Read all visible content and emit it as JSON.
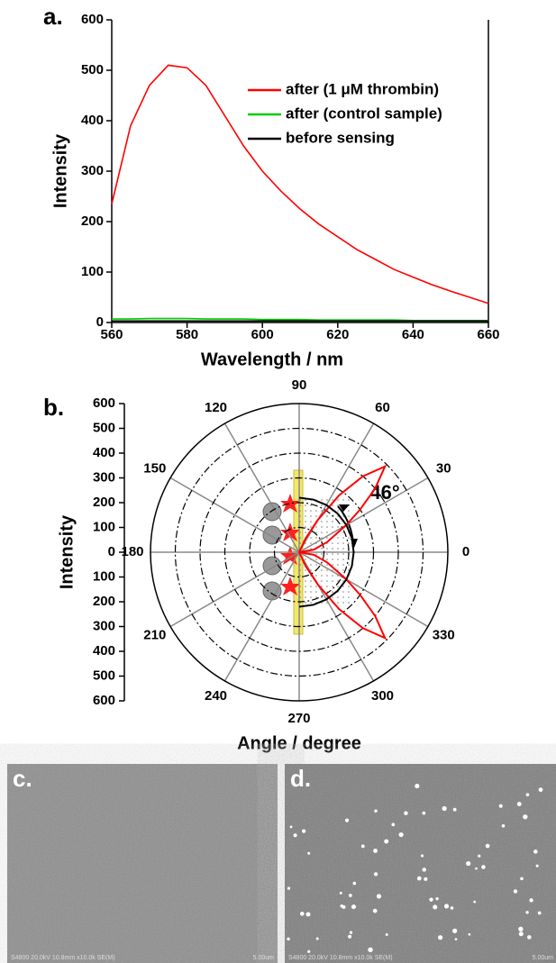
{
  "chart_data": [
    {
      "type": "line",
      "panel": "a.",
      "xlabel": "Wavelength / nm",
      "ylabel": "Intensity",
      "xlim": [
        560,
        660
      ],
      "xticks": [
        560,
        580,
        600,
        620,
        640,
        660
      ],
      "ylim": [
        0,
        600
      ],
      "yticks": [
        0,
        100,
        200,
        300,
        400,
        500,
        600
      ],
      "x": [
        560,
        565,
        570,
        575,
        580,
        585,
        590,
        595,
        600,
        605,
        610,
        615,
        620,
        625,
        630,
        635,
        640,
        645,
        650,
        655,
        660
      ],
      "series": [
        {
          "name": "after (1 μM thrombin)",
          "color": "#ff0000",
          "values": [
            235,
            390,
            470,
            510,
            505,
            470,
            410,
            350,
            300,
            260,
            225,
            195,
            170,
            145,
            125,
            105,
            90,
            75,
            62,
            50,
            38
          ]
        },
        {
          "name": "after (control sample)",
          "color": "#00cc00",
          "values": [
            7,
            7,
            8,
            8,
            8,
            7,
            7,
            7,
            6,
            6,
            6,
            5,
            5,
            5,
            5,
            5,
            4,
            4,
            4,
            4,
            4
          ]
        },
        {
          "name": "before sensing",
          "color": "#000000",
          "values": [
            3,
            3,
            3,
            3,
            3,
            3,
            3,
            3,
            3,
            3,
            3,
            3,
            3,
            3,
            3,
            3,
            3,
            3,
            3,
            3,
            3
          ]
        }
      ]
    },
    {
      "type": "polar",
      "panel": "b.",
      "xlabel": "Angle / degree",
      "ylabel": "Intensity",
      "annotation": "46°",
      "rlim": [
        0,
        600
      ],
      "rticks": [
        0,
        100,
        200,
        300,
        400,
        500,
        600
      ],
      "angle_ticks": [
        0,
        30,
        60,
        90,
        120,
        150,
        180,
        210,
        240,
        270,
        300,
        330
      ],
      "series": [
        {
          "color": "#ff0000",
          "angles": [
            -70,
            -65,
            -60,
            -55,
            -50,
            -45,
            -40,
            -35,
            -30,
            -20,
            -10,
            0,
            10,
            20,
            30,
            35,
            40,
            45,
            50,
            55,
            60,
            65,
            70
          ],
          "values": [
            0,
            60,
            150,
            280,
            400,
            490,
            400,
            300,
            220,
            120,
            60,
            0,
            60,
            120,
            220,
            300,
            400,
            490,
            400,
            280,
            150,
            60,
            0
          ]
        },
        {
          "color": "#000000",
          "angles": [
            -90,
            -75,
            -60,
            -45,
            -30,
            -15,
            0,
            15,
            30,
            45,
            60,
            75,
            90
          ],
          "values": [
            220,
            220,
            220,
            220,
            220,
            220,
            220,
            220,
            220,
            220,
            220,
            220,
            220
          ]
        }
      ]
    }
  ],
  "panels": [
    {
      "label": "c.",
      "caption": "S4800 20.0kV 10.8mm x10.0k SE(M)",
      "scale": "5.00um"
    },
    {
      "label": "d.",
      "caption": "S4800 20.0kV 10.8mm x10.0k SE(M)",
      "scale": "5.00um"
    }
  ]
}
